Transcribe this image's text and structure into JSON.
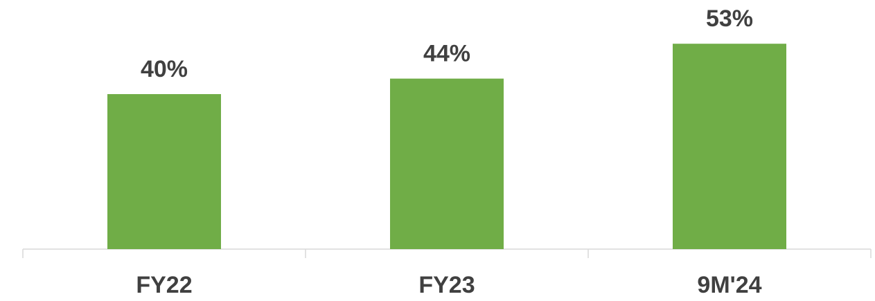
{
  "chart_data": {
    "type": "bar",
    "categories": [
      "FY22",
      "FY23",
      "9M'24"
    ],
    "values": [
      40,
      44,
      53
    ],
    "value_labels": [
      "40%",
      "44%",
      "53%"
    ],
    "color": "#70ad47"
  }
}
